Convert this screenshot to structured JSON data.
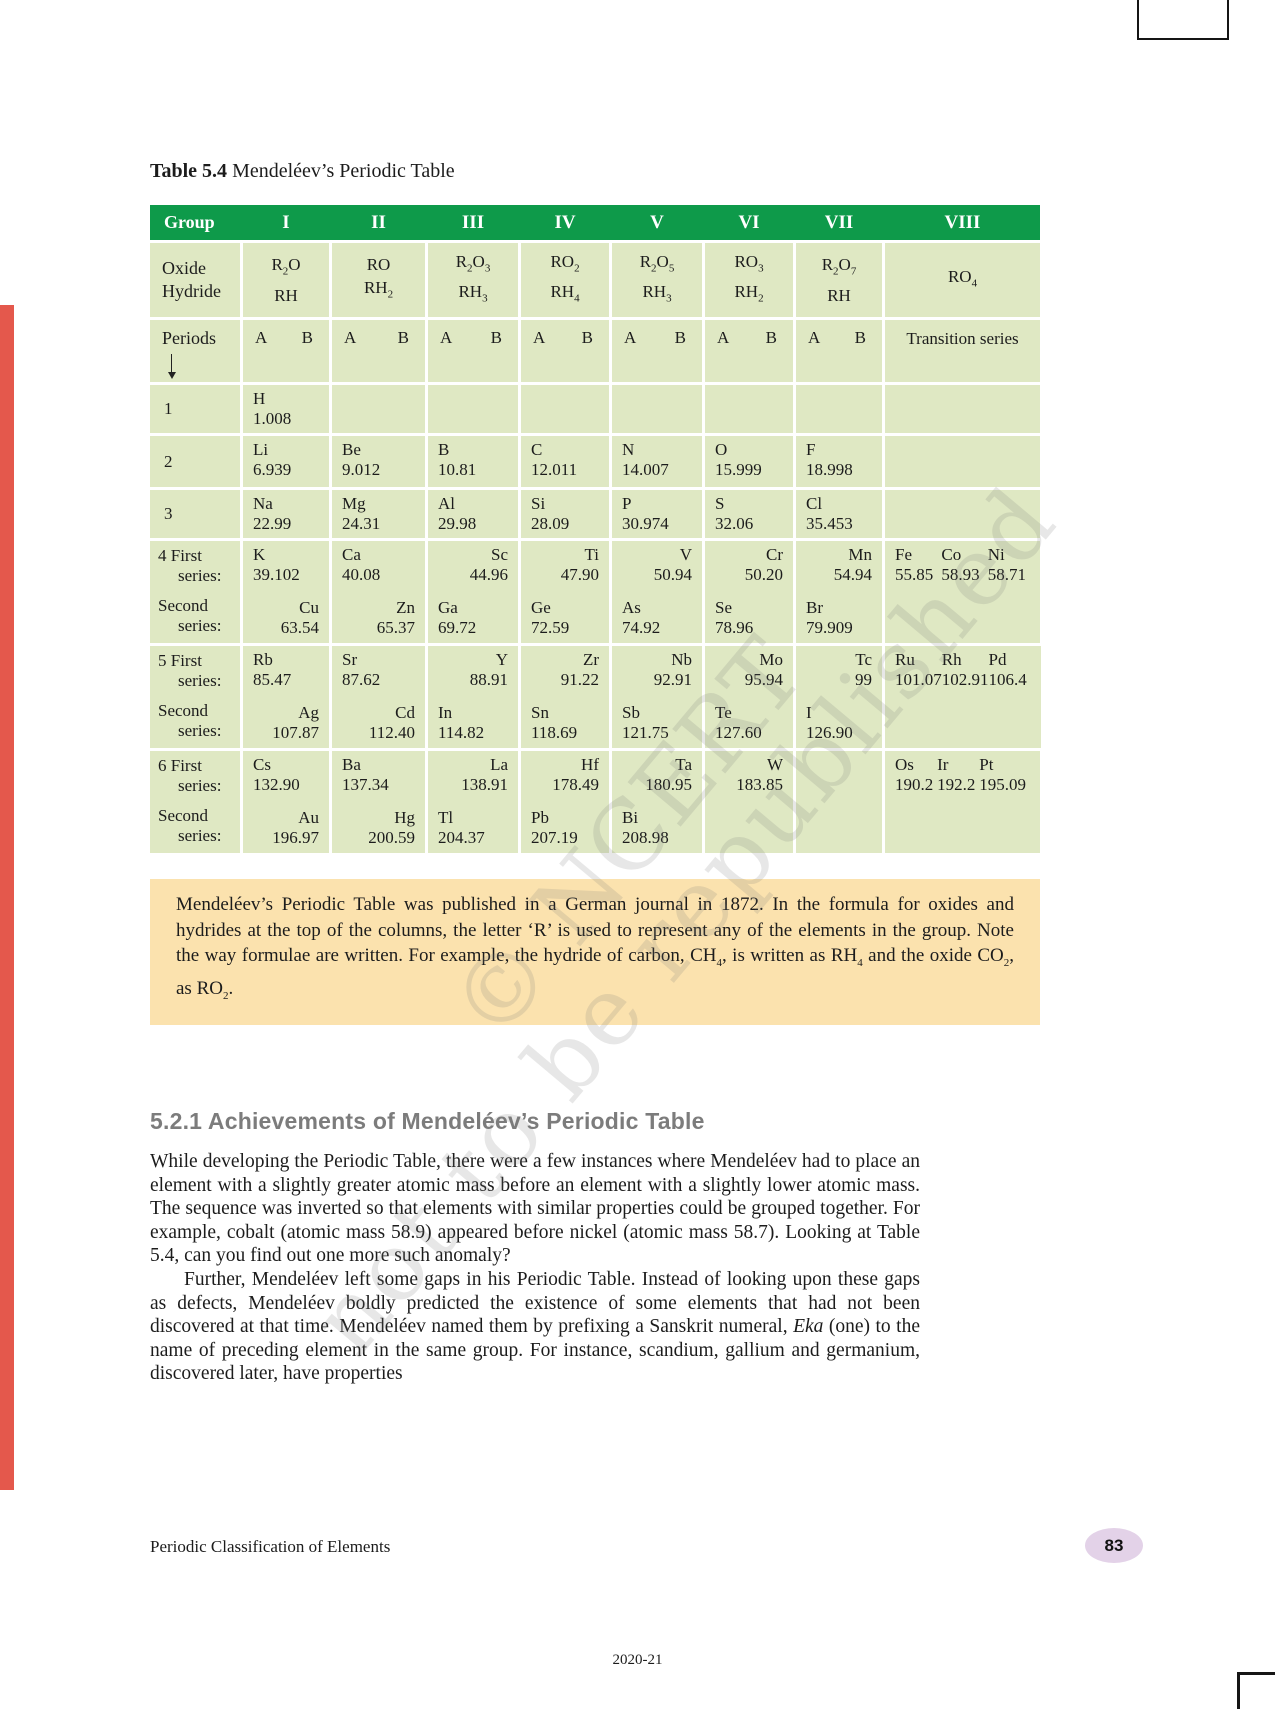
{
  "colors": {
    "green": "#0e9a4a",
    "cellbg": "#dfe8c3",
    "notebg": "#fbe2ae",
    "strip": "#e4584c",
    "badge": "#e3d2e8",
    "hgray": "#7c7c7c"
  },
  "page": {
    "caption_bold": "Table 5.4",
    "caption_text": " Mendeléev’s Periodic Table",
    "watermark_line1": "© NCERT",
    "watermark_line2": "not to be republished",
    "footer_left": "Periodic Classification of Elements",
    "page_number": "83",
    "year": "2020-21"
  },
  "table": {
    "group_header": [
      "Group",
      "I",
      "II",
      "III",
      "IV",
      "V",
      "VI",
      "VII",
      "VIII"
    ],
    "oxide_hydride": {
      "label_lines": [
        "Oxide",
        "Hydride"
      ],
      "groups": [
        {
          "oxide": [
            "R",
            {
              "sub": "2"
            },
            "O"
          ],
          "hydride": [
            "RH"
          ]
        },
        {
          "oxide": [
            "RO"
          ],
          "hydride": [
            "RH",
            {
              "sub": "2"
            }
          ]
        },
        {
          "oxide": [
            "R",
            {
              "sub": "2"
            },
            "O",
            {
              "sub": "3"
            }
          ],
          "hydride": [
            "RH",
            {
              "sub": "3"
            }
          ]
        },
        {
          "oxide": [
            "RO",
            {
              "sub": "2"
            }
          ],
          "hydride": [
            "RH",
            {
              "sub": "4"
            }
          ]
        },
        {
          "oxide": [
            "R",
            {
              "sub": "2"
            },
            "O",
            {
              "sub": "5"
            }
          ],
          "hydride": [
            "RH",
            {
              "sub": "3"
            }
          ]
        },
        {
          "oxide": [
            "RO",
            {
              "sub": "3"
            }
          ],
          "hydride": [
            "RH",
            {
              "sub": "2"
            }
          ]
        },
        {
          "oxide": [
            "R",
            {
              "sub": "2"
            },
            "O",
            {
              "sub": "7"
            }
          ],
          "hydride": [
            "RH"
          ]
        }
      ],
      "group8": [
        "RO",
        {
          "sub": "4"
        }
      ]
    },
    "periods_header": {
      "label": "Periods",
      "a": "A",
      "b": "B",
      "transition": "Transition series"
    },
    "periods": [
      {
        "num": "1",
        "cells": [
          {
            "sym": "H",
            "mass": "1.008",
            "align": "A"
          },
          null,
          null,
          null,
          null,
          null,
          null
        ]
      },
      {
        "num": "2",
        "cells": [
          {
            "sym": "Li",
            "mass": "6.939",
            "align": "A"
          },
          {
            "sym": "Be",
            "mass": "9.012",
            "align": "A"
          },
          {
            "sym": "B",
            "mass": "10.81",
            "align": "A"
          },
          {
            "sym": "C",
            "mass": "12.011",
            "align": "A"
          },
          {
            "sym": "N",
            "mass": "14.007",
            "align": "A"
          },
          {
            "sym": "O",
            "mass": "15.999",
            "align": "A"
          },
          {
            "sym": "F",
            "mass": "18.998",
            "align": "A"
          }
        ]
      },
      {
        "num": "3",
        "cells": [
          {
            "sym": "Na",
            "mass": "22.99",
            "align": "A"
          },
          {
            "sym": "Mg",
            "mass": "24.31",
            "align": "A"
          },
          {
            "sym": "Al",
            "mass": "29.98",
            "align": "A"
          },
          {
            "sym": "Si",
            "mass": "28.09",
            "align": "A"
          },
          {
            "sym": "P",
            "mass": "30.974",
            "align": "A"
          },
          {
            "sym": "S",
            "mass": "32.06",
            "align": "A"
          },
          {
            "sym": "Cl",
            "mass": "35.453",
            "align": "A"
          }
        ]
      },
      {
        "first_label": "4 First series:",
        "second_label": "Second series:",
        "first": [
          {
            "sym": "K",
            "mass": "39.102",
            "align": "A"
          },
          {
            "sym": "Ca",
            "mass": "40.08",
            "align": "A"
          },
          {
            "sym": "Sc",
            "mass": "44.96",
            "align": "B"
          },
          {
            "sym": "Ti",
            "mass": "47.90",
            "align": "B"
          },
          {
            "sym": "V",
            "mass": "50.94",
            "align": "B"
          },
          {
            "sym": "Cr",
            "mass": "50.20",
            "align": "B"
          },
          {
            "sym": "Mn",
            "mass": "54.94",
            "align": "B"
          }
        ],
        "second": [
          {
            "sym": "Cu",
            "mass": "63.54",
            "align": "B"
          },
          {
            "sym": "Zn",
            "mass": "65.37",
            "align": "B"
          },
          {
            "sym": "Ga",
            "mass": "69.72",
            "align": "A"
          },
          {
            "sym": "Ge",
            "mass": "72.59",
            "align": "A"
          },
          {
            "sym": "As",
            "mass": "74.92",
            "align": "A"
          },
          {
            "sym": "Se",
            "mass": "78.96",
            "align": "A"
          },
          {
            "sym": "Br",
            "mass": "79.909",
            "align": "A"
          }
        ],
        "viii": [
          {
            "sym": "Fe",
            "mass": "55.85"
          },
          {
            "sym": "Co",
            "mass": "58.93"
          },
          {
            "sym": "Ni",
            "mass": "58.71"
          }
        ]
      },
      {
        "first_label": "5 First series:",
        "second_label": "Second series:",
        "first": [
          {
            "sym": "Rb",
            "mass": "85.47",
            "align": "A"
          },
          {
            "sym": "Sr",
            "mass": "87.62",
            "align": "A"
          },
          {
            "sym": "Y",
            "mass": "88.91",
            "align": "B"
          },
          {
            "sym": "Zr",
            "mass": "91.22",
            "align": "B"
          },
          {
            "sym": "Nb",
            "mass": "92.91",
            "align": "B"
          },
          {
            "sym": "Mo",
            "mass": "95.94",
            "align": "B"
          },
          {
            "sym": "Tc",
            "mass": "99",
            "align": "B"
          }
        ],
        "second": [
          {
            "sym": "Ag",
            "mass": "107.87",
            "align": "B"
          },
          {
            "sym": "Cd",
            "mass": "112.40",
            "align": "B"
          },
          {
            "sym": "In",
            "mass": "114.82",
            "align": "A"
          },
          {
            "sym": "Sn",
            "mass": "118.69",
            "align": "A"
          },
          {
            "sym": "Sb",
            "mass": "121.75",
            "align": "A"
          },
          {
            "sym": "Te",
            "mass": "127.60",
            "align": "A"
          },
          {
            "sym": "I",
            "mass": "126.90",
            "align": "A"
          }
        ],
        "viii": [
          {
            "sym": "Ru",
            "mass": "101.07"
          },
          {
            "sym": "Rh",
            "mass": "102.91"
          },
          {
            "sym": "Pd",
            "mass": "106.4"
          }
        ]
      },
      {
        "first_label": "6 First series:",
        "second_label": "Second series:",
        "first": [
          {
            "sym": "Cs",
            "mass": "132.90",
            "align": "A"
          },
          {
            "sym": "Ba",
            "mass": "137.34",
            "align": "A"
          },
          {
            "sym": "La",
            "mass": "138.91",
            "align": "B"
          },
          {
            "sym": "Hf",
            "mass": "178.49",
            "align": "B"
          },
          {
            "sym": "Ta",
            "mass": "180.95",
            "align": "B"
          },
          {
            "sym": "W",
            "mass": "183.85",
            "align": "B"
          },
          null
        ],
        "second": [
          {
            "sym": "Au",
            "mass": "196.97",
            "align": "B"
          },
          {
            "sym": "Hg",
            "mass": "200.59",
            "align": "B"
          },
          {
            "sym": "Tl",
            "mass": "204.37",
            "align": "A"
          },
          {
            "sym": "Pb",
            "mass": "207.19",
            "align": "A"
          },
          {
            "sym": "Bi",
            "mass": "208.98",
            "align": "A"
          },
          null,
          null
        ],
        "viii": [
          {
            "sym": "Os",
            "mass": "190.2"
          },
          {
            "sym": "Ir",
            "mass": "192.2"
          },
          {
            "sym": "Pt",
            "mass": "195.09"
          }
        ]
      }
    ]
  },
  "note": {
    "segments": [
      "Mendeléev’s Periodic Table was published in a German journal in 1872. In the formula for oxides and hydrides at the top of the columns, the letter ‘R’ is used to represent any of the elements in the group. Note the way formulae are written. For example, the hydride of carbon, CH",
      {
        "sub": "4"
      },
      ", is written as RH",
      {
        "sub": "4"
      },
      " and the oxide CO",
      {
        "sub": "2"
      },
      ", as RO",
      {
        "sub": "2"
      },
      "."
    ]
  },
  "section": {
    "heading": "5.2.1 Achievements of Mendeléev’s Periodic Table",
    "para1": "While developing the Periodic Table, there were a few instances where Mendeléev had to place an element with a slightly greater atomic mass before an element with a slightly lower atomic mass. The sequence was inverted so that elements with similar properties could be grouped together. For example, cobalt (atomic mass 58.9) appeared before nickel (atomic mass 58.7). Looking at Table 5.4, can you find out one more such anomaly?",
    "para2_segments": [
      "Further, Mendeléev left some gaps in his Periodic Table. Instead of looking upon these gaps as defects, Mendeléev boldly predicted the existence of some elements that had not been discovered at that time. Mendeléev named them by prefixing a Sanskrit numeral, ",
      {
        "i": "Eka"
      },
      " (one) to the name of preceding element in the same group. For instance, scandium, gallium and germanium, discovered later, have properties"
    ]
  }
}
